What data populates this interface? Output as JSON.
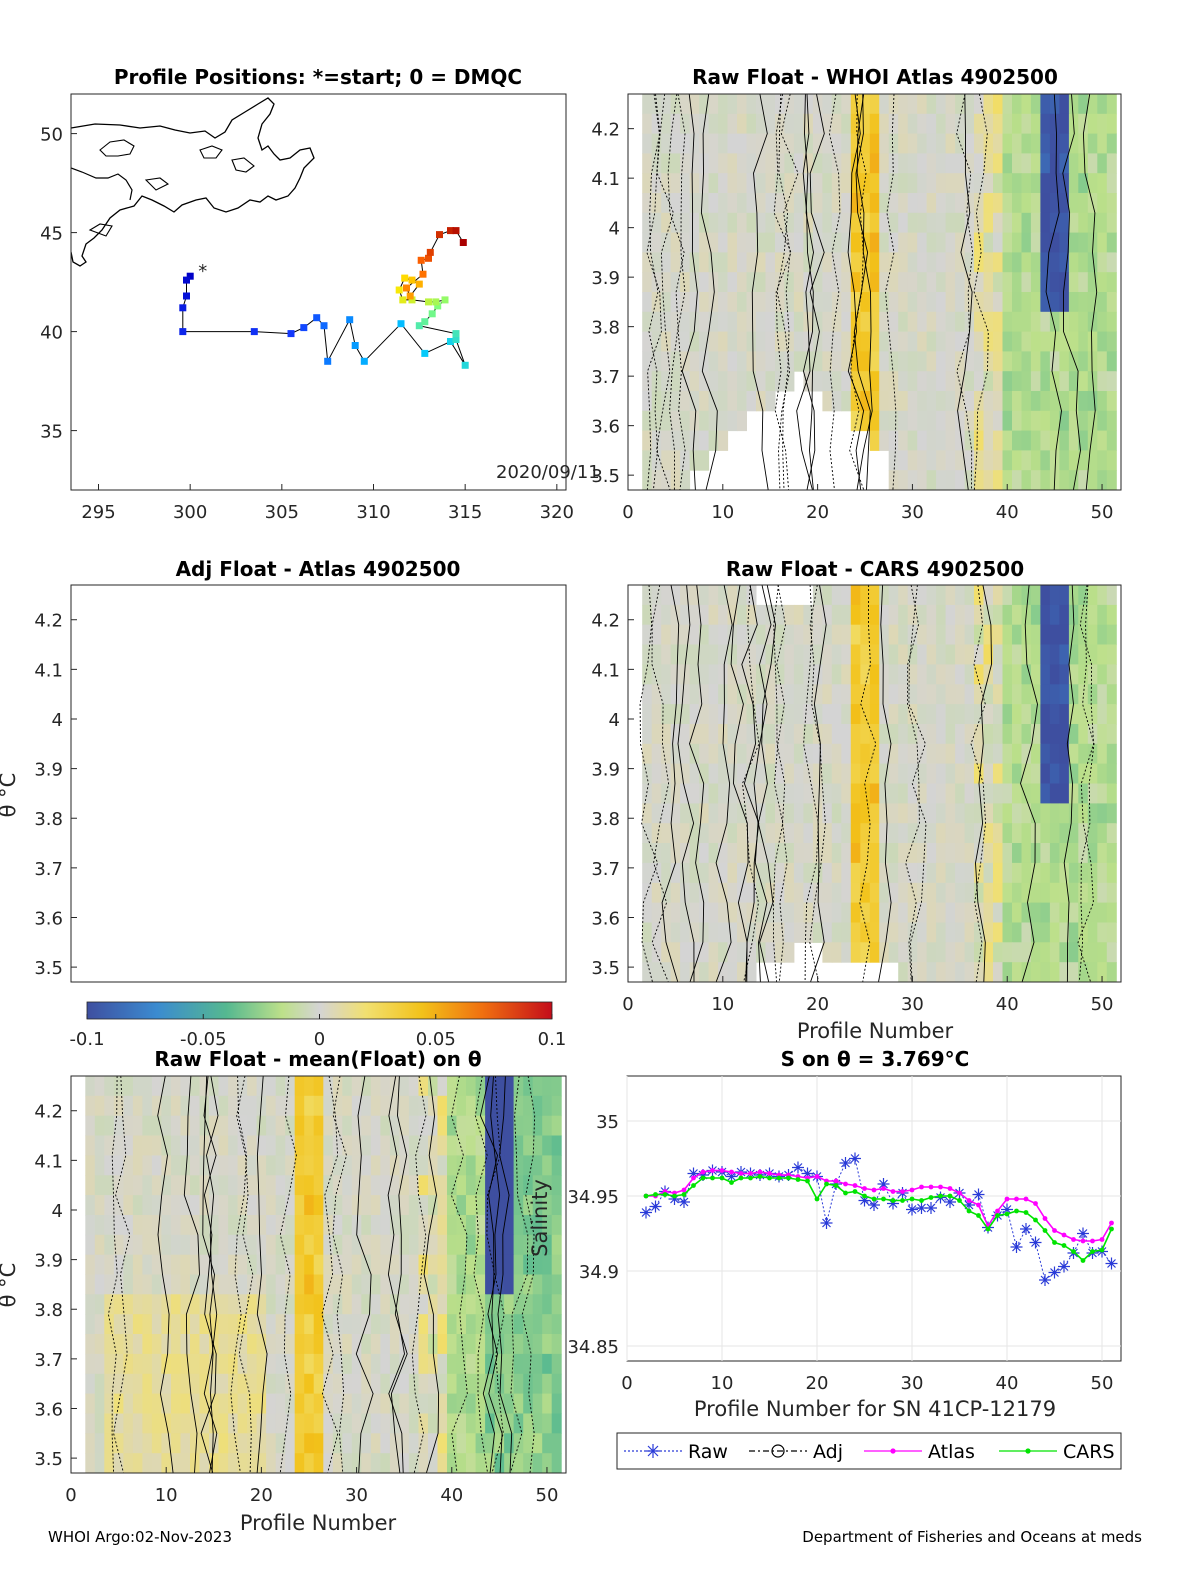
{
  "footer": {
    "left": "WHOI Argo:02-Nov-2023",
    "right": "Department of Fisheries and Oceans at meds"
  },
  "colors": {
    "raw": "#2a3bd8",
    "adj": "#000000",
    "atlas": "#ff00ff",
    "cars": "#00e400",
    "background": "#ffffff",
    "neutral": "#d3d3d3"
  },
  "map": {
    "title": "Profile Positions: *=start; 0 = DMQC",
    "date_label": "2020/09/11",
    "xticks": [
      "295",
      "300",
      "305",
      "310",
      "315",
      "320"
    ],
    "yticks": [
      "35",
      "40",
      "45",
      "50"
    ],
    "chart_data": {
      "type": "scatter",
      "xlim": [
        293.5,
        320.5
      ],
      "ylim": [
        32,
        52
      ],
      "track": [
        [
          300.0,
          42.8
        ],
        [
          299.8,
          42.6
        ],
        [
          299.8,
          41.8
        ],
        [
          299.6,
          41.2
        ],
        [
          299.6,
          40.0
        ],
        [
          303.5,
          40.0
        ],
        [
          305.5,
          39.9
        ],
        [
          306.2,
          40.2
        ],
        [
          306.9,
          40.7
        ],
        [
          307.3,
          40.3
        ],
        [
          307.5,
          38.5
        ],
        [
          308.7,
          40.6
        ],
        [
          309.0,
          39.3
        ],
        [
          309.5,
          38.5
        ],
        [
          311.5,
          40.4
        ],
        [
          312.8,
          38.9
        ],
        [
          314.2,
          39.5
        ],
        [
          315.0,
          38.3
        ],
        [
          314.5,
          39.6
        ],
        [
          314.5,
          39.9
        ],
        [
          312.5,
          40.3
        ],
        [
          312.8,
          40.5
        ],
        [
          313.2,
          40.9
        ],
        [
          313.5,
          41.3
        ],
        [
          313.9,
          41.6
        ],
        [
          313.4,
          41.5
        ],
        [
          313.0,
          41.5
        ],
        [
          312.1,
          41.6
        ],
        [
          311.6,
          41.6
        ],
        [
          311.4,
          42.1
        ],
        [
          311.7,
          42.7
        ],
        [
          312.1,
          42.6
        ],
        [
          312.5,
          42.4
        ],
        [
          312.0,
          41.8
        ],
        [
          311.8,
          42.2
        ],
        [
          312.7,
          42.9
        ],
        [
          312.6,
          43.6
        ],
        [
          313.0,
          43.7
        ],
        [
          313.1,
          44.0
        ],
        [
          313.6,
          44.9
        ],
        [
          314.2,
          45.1
        ],
        [
          314.5,
          45.1
        ],
        [
          314.9,
          44.5
        ]
      ]
    }
  },
  "panels": {
    "atlas": {
      "title": "Raw Float - WHOI Atlas  4902500"
    },
    "adj": {
      "title": "Adj Float - Atlas  4902500"
    },
    "cars": {
      "title": "Raw Float - CARS  4902500",
      "xlabel": "Profile Number"
    },
    "mean": {
      "title": "Raw Float - mean(Float) on θ",
      "xlabel": "Profile Number"
    }
  },
  "theta_axis": {
    "ylabel": "θ °C",
    "yticks": [
      "3.5",
      "3.6",
      "3.7",
      "3.8",
      "3.9",
      "4",
      "4.1",
      "4.2"
    ],
    "xticks": [
      "0",
      "10",
      "20",
      "30",
      "40",
      "50"
    ]
  },
  "colorbar": {
    "ticks": [
      "-0.1",
      "-0.05",
      "0",
      "0.05",
      "0.1"
    ],
    "range": [
      -0.1,
      0.1
    ]
  },
  "salinity": {
    "title": "S on θ = 3.769°C",
    "xlabel": "Profile Number for SN 41CP-12179",
    "ylabel": "Salinity",
    "xticks": [
      "0",
      "10",
      "20",
      "30",
      "40",
      "50"
    ],
    "yticks": [
      "34.85",
      "34.9",
      "34.95",
      "35"
    ],
    "legend": [
      "Raw",
      "Adj",
      "Atlas",
      "CARS"
    ],
    "chart_data": {
      "type": "line",
      "xlim": [
        0,
        52
      ],
      "ylim": [
        34.84,
        35.03
      ],
      "x": [
        2,
        3,
        4,
        5,
        6,
        7,
        8,
        9,
        10,
        11,
        12,
        13,
        14,
        15,
        16,
        17,
        18,
        19,
        20,
        21,
        22,
        23,
        24,
        25,
        26,
        27,
        28,
        29,
        30,
        31,
        32,
        33,
        34,
        35,
        36,
        37,
        38,
        39,
        40,
        41,
        42,
        43,
        44,
        45,
        46,
        47,
        48,
        49,
        50,
        51
      ],
      "series": [
        {
          "name": "Raw",
          "values": [
            34.939,
            34.943,
            34.953,
            34.948,
            34.946,
            34.965,
            34.964,
            34.967,
            34.966,
            34.963,
            34.966,
            34.965,
            34.964,
            34.965,
            34.963,
            34.964,
            34.969,
            34.965,
            34.963,
            34.932,
            34.958,
            34.972,
            34.975,
            34.947,
            34.944,
            34.958,
            34.945,
            34.952,
            34.941,
            34.942,
            34.942,
            34.949,
            34.946,
            34.952,
            34.944,
            34.951,
            34.929,
            34.937,
            34.941,
            34.916,
            34.928,
            34.919,
            34.894,
            34.899,
            34.903,
            34.912,
            34.925,
            34.912,
            34.913,
            34.905
          ]
        },
        {
          "name": "Atlas",
          "values": [
            34.95,
            34.95,
            34.953,
            34.952,
            34.954,
            34.962,
            34.966,
            34.967,
            34.967,
            34.966,
            34.965,
            34.965,
            34.966,
            34.965,
            34.964,
            34.964,
            34.963,
            34.962,
            34.963,
            34.96,
            34.96,
            34.958,
            34.957,
            34.955,
            34.954,
            34.955,
            34.953,
            34.953,
            34.954,
            34.956,
            34.956,
            34.956,
            34.955,
            34.952,
            34.947,
            34.944,
            34.93,
            34.94,
            34.948,
            34.948,
            34.948,
            34.945,
            34.935,
            34.927,
            34.924,
            34.921,
            34.92,
            34.92,
            34.921,
            34.932
          ]
        },
        {
          "name": "CARS",
          "values": [
            34.95,
            34.951,
            34.951,
            34.95,
            34.951,
            34.957,
            34.962,
            34.962,
            34.962,
            34.959,
            34.962,
            34.962,
            34.963,
            34.962,
            34.962,
            34.962,
            34.961,
            34.96,
            34.948,
            34.958,
            34.957,
            34.952,
            34.953,
            34.95,
            34.948,
            34.948,
            34.947,
            34.947,
            34.948,
            34.947,
            34.949,
            34.95,
            34.95,
            34.947,
            34.94,
            34.937,
            34.928,
            34.937,
            34.938,
            34.94,
            34.939,
            34.934,
            34.927,
            34.919,
            34.917,
            34.913,
            34.907,
            34.913,
            34.914,
            34.928
          ]
        }
      ]
    }
  }
}
